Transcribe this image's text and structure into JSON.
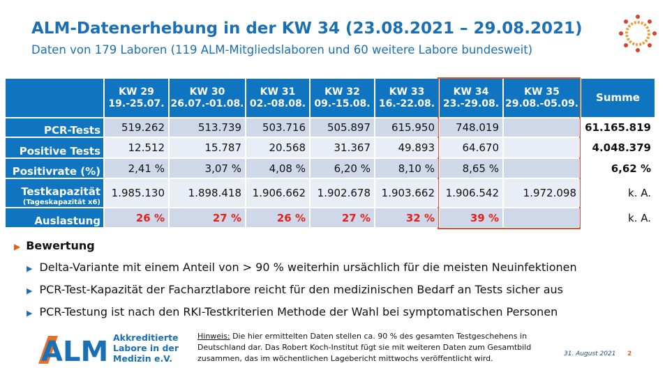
{
  "header": {
    "title": "ALM-Datenerhebung in der KW 34 (23.08.2021 – 29.08.2021)",
    "subtitle": "Daten von 179 Laboren (119 ALM-Mitgliedslaboren und 60 weitere Labore bundesweit)"
  },
  "table": {
    "columns": [
      [
        "KW 29",
        "19.-25.07."
      ],
      [
        "KW 30",
        "26.07.-01.08."
      ],
      [
        "KW 31",
        "02.-08.08."
      ],
      [
        "KW 32",
        "09.-15.08."
      ],
      [
        "KW 33",
        "16.-22.08."
      ],
      [
        "KW 34",
        "23.-29.08."
      ],
      [
        "KW 35",
        "29.08.-05.09."
      ],
      [
        "Summe"
      ]
    ],
    "rows": [
      {
        "label": [
          "PCR-Tests"
        ],
        "cells": [
          "519.262",
          "513.739",
          "503.716",
          "505.897",
          "615.950",
          "748.019",
          null,
          "61.165.819"
        ]
      },
      {
        "label": [
          "Positive Tests"
        ],
        "cells": [
          "12.512",
          "15.787",
          "20.568",
          "31.367",
          "49.893",
          "64.670",
          null,
          "4.048.379"
        ]
      },
      {
        "label": [
          "Positivrate (%)"
        ],
        "cells": [
          "2,41 %",
          "3,07 %",
          "4,08 %",
          "6,20 %",
          "8,10 %",
          "8,65 %",
          null,
          "6,62 %"
        ]
      },
      {
        "label": [
          "Testkapazität",
          "(Tageskapazität x6)"
        ],
        "cells": [
          "1.985.130",
          "1.898.418",
          "1.906.662",
          "1.902.678",
          "1.903.662",
          "1.906.542",
          "1.972.098",
          "k. A."
        ]
      },
      {
        "label": [
          "Auslastung"
        ],
        "cells": [
          "26 %",
          "27 %",
          "26 %",
          "27 %",
          "32 %",
          "39 %",
          null,
          "k. A."
        ]
      }
    ]
  },
  "bewertung": {
    "heading": "Bewertung",
    "items": [
      "Delta-Variante mit einem Anteil von > 90 % weiterhin ursächlich für die meisten Neuinfektionen",
      "PCR-Test-Kapazität der Facharztlabore reicht für den medizinischen Bedarf an Tests sicher aus",
      "PCR-Testung ist nach den RKI-Testkriterien Methode der Wahl bei symptomatischen Personen"
    ]
  },
  "footer": {
    "logo": "ALM",
    "logo_lines": [
      "Akkreditierte",
      "Labore in der",
      "Medizin e.V."
    ],
    "note_label": "Hinweis:",
    "note": "Die hier ermittelten Daten stellen ca. 90 % des gesamten Testgeschehens in Deutschland dar. Das Robert Koch-Institut fügt sie mit weiteren Daten zum Gesamtbild zusammen, das im wöchentlichen Lagebericht mittwochs veröffentlicht wird.",
    "date": "31. August 2021",
    "page": "2"
  }
}
